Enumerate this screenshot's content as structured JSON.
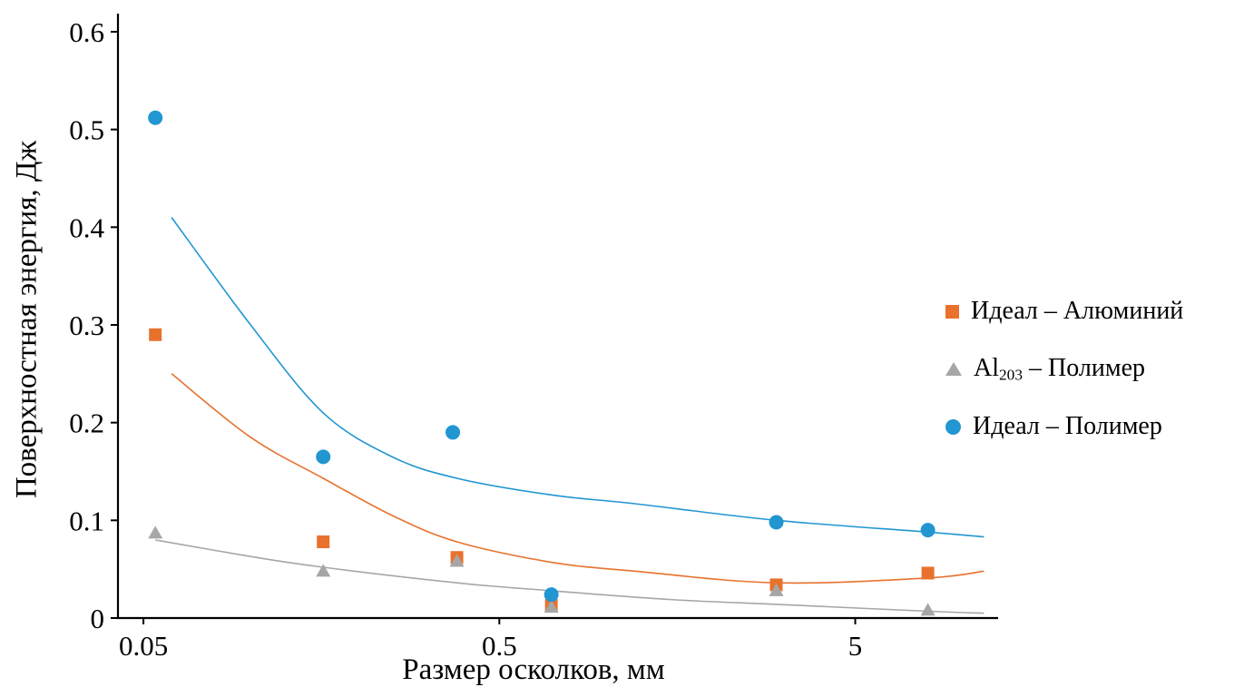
{
  "chart_data": {
    "type": "scatter",
    "title": "",
    "xlabel": "Размер осколков, мм",
    "ylabel": "Поверхностная энергия, Дж",
    "x_scale": "log",
    "grid": false,
    "legend_position": "right",
    "x_range": [
      0.0424,
      12.6
    ],
    "y_range": [
      0,
      0.6
    ],
    "x_ticks": [
      "0.05",
      "0.5",
      "5"
    ],
    "y_ticks": [
      "0",
      "0.1",
      "0.2",
      "0.3",
      "0.4",
      "0.5",
      "0.6"
    ],
    "series": [
      {
        "name": "Идеал – Алюминий",
        "marker": "square",
        "color": "#E8722D",
        "points": [
          [
            0.054,
            0.29
          ],
          [
            0.16,
            0.078
          ],
          [
            0.38,
            0.062
          ],
          [
            0.7,
            0.013
          ],
          [
            3,
            0.034
          ],
          [
            8,
            0.046
          ]
        ],
        "trend": [
          [
            0.06,
            0.25
          ],
          [
            0.1,
            0.185
          ],
          [
            0.16,
            0.143
          ],
          [
            0.25,
            0.105
          ],
          [
            0.38,
            0.078
          ],
          [
            0.7,
            0.057
          ],
          [
            1.2,
            0.048
          ],
          [
            3,
            0.036
          ],
          [
            8,
            0.041
          ],
          [
            11.5,
            0.048
          ]
        ]
      },
      {
        "name": "Al203 – Полимер",
        "label_parts": {
          "pre": "Al",
          "sub": "203",
          "post": " – Полимер"
        },
        "marker": "triangle",
        "color": "#A6A6A6",
        "points": [
          [
            0.054,
            0.087
          ],
          [
            0.16,
            0.048
          ],
          [
            0.38,
            0.058
          ],
          [
            0.7,
            0.011
          ],
          [
            3,
            0.028
          ],
          [
            8,
            0.008
          ]
        ],
        "trend": [
          [
            0.054,
            0.08
          ],
          [
            0.1,
            0.063
          ],
          [
            0.16,
            0.052
          ],
          [
            0.38,
            0.036
          ],
          [
            0.7,
            0.028
          ],
          [
            1.5,
            0.019
          ],
          [
            3,
            0.014
          ],
          [
            8,
            0.007
          ],
          [
            11.5,
            0.005
          ]
        ]
      },
      {
        "name": "Идеал – Полимер",
        "marker": "circle",
        "color": "#2196D1",
        "points": [
          [
            0.054,
            0.512
          ],
          [
            0.16,
            0.165
          ],
          [
            0.37,
            0.19
          ],
          [
            0.7,
            0.024
          ],
          [
            3,
            0.098
          ],
          [
            8,
            0.09
          ]
        ],
        "trend": [
          [
            0.06,
            0.41
          ],
          [
            0.1,
            0.3
          ],
          [
            0.16,
            0.21
          ],
          [
            0.25,
            0.165
          ],
          [
            0.38,
            0.143
          ],
          [
            0.7,
            0.126
          ],
          [
            1.2,
            0.117
          ],
          [
            3,
            0.1
          ],
          [
            8,
            0.088
          ],
          [
            11.5,
            0.083
          ]
        ]
      }
    ]
  }
}
